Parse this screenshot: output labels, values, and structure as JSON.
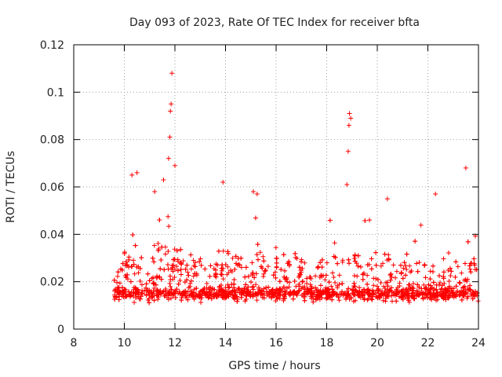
{
  "chart_data": {
    "type": "scatter",
    "title": "Day 093 of 2023, Rate Of TEC Index for receiver bfta",
    "xlabel": "GPS time / hours",
    "ylabel": "ROTI / TECUs",
    "xlim": [
      8,
      24
    ],
    "ylim": [
      0,
      0.12
    ],
    "xticks": [
      8,
      10,
      12,
      14,
      16,
      18,
      20,
      22,
      24
    ],
    "yticks": [
      0,
      0.02,
      0.04,
      0.06,
      0.08,
      0.1,
      0.12
    ],
    "xtick_labels": [
      "8",
      "10",
      "12",
      "14",
      "16",
      "18",
      "20",
      "22",
      "24"
    ],
    "ytick_labels": [
      "0",
      "0.02",
      "0.04",
      "0.06",
      "0.08",
      "0.1",
      "0.12"
    ],
    "grid": true,
    "marker": "+",
    "color": "#ff0000",
    "series": [
      {
        "name": "ROTI",
        "x_range": [
          9.6,
          24.0
        ],
        "typical_range": [
          0.005,
          0.035
        ],
        "peaks": [
          {
            "x": 10.3,
            "y": 0.065
          },
          {
            "x": 10.5,
            "y": 0.066
          },
          {
            "x": 11.2,
            "y": 0.058
          },
          {
            "x": 11.55,
            "y": 0.063
          },
          {
            "x": 11.75,
            "y": 0.072
          },
          {
            "x": 11.8,
            "y": 0.081
          },
          {
            "x": 11.82,
            "y": 0.092
          },
          {
            "x": 11.85,
            "y": 0.095
          },
          {
            "x": 11.88,
            "y": 0.108
          },
          {
            "x": 12.0,
            "y": 0.069
          },
          {
            "x": 13.9,
            "y": 0.062
          },
          {
            "x": 15.1,
            "y": 0.058
          },
          {
            "x": 15.25,
            "y": 0.057
          },
          {
            "x": 18.8,
            "y": 0.061
          },
          {
            "x": 18.85,
            "y": 0.075
          },
          {
            "x": 18.88,
            "y": 0.086
          },
          {
            "x": 18.9,
            "y": 0.091
          },
          {
            "x": 18.95,
            "y": 0.089
          },
          {
            "x": 20.4,
            "y": 0.055
          },
          {
            "x": 22.3,
            "y": 0.057
          },
          {
            "x": 23.5,
            "y": 0.068
          }
        ]
      }
    ]
  }
}
